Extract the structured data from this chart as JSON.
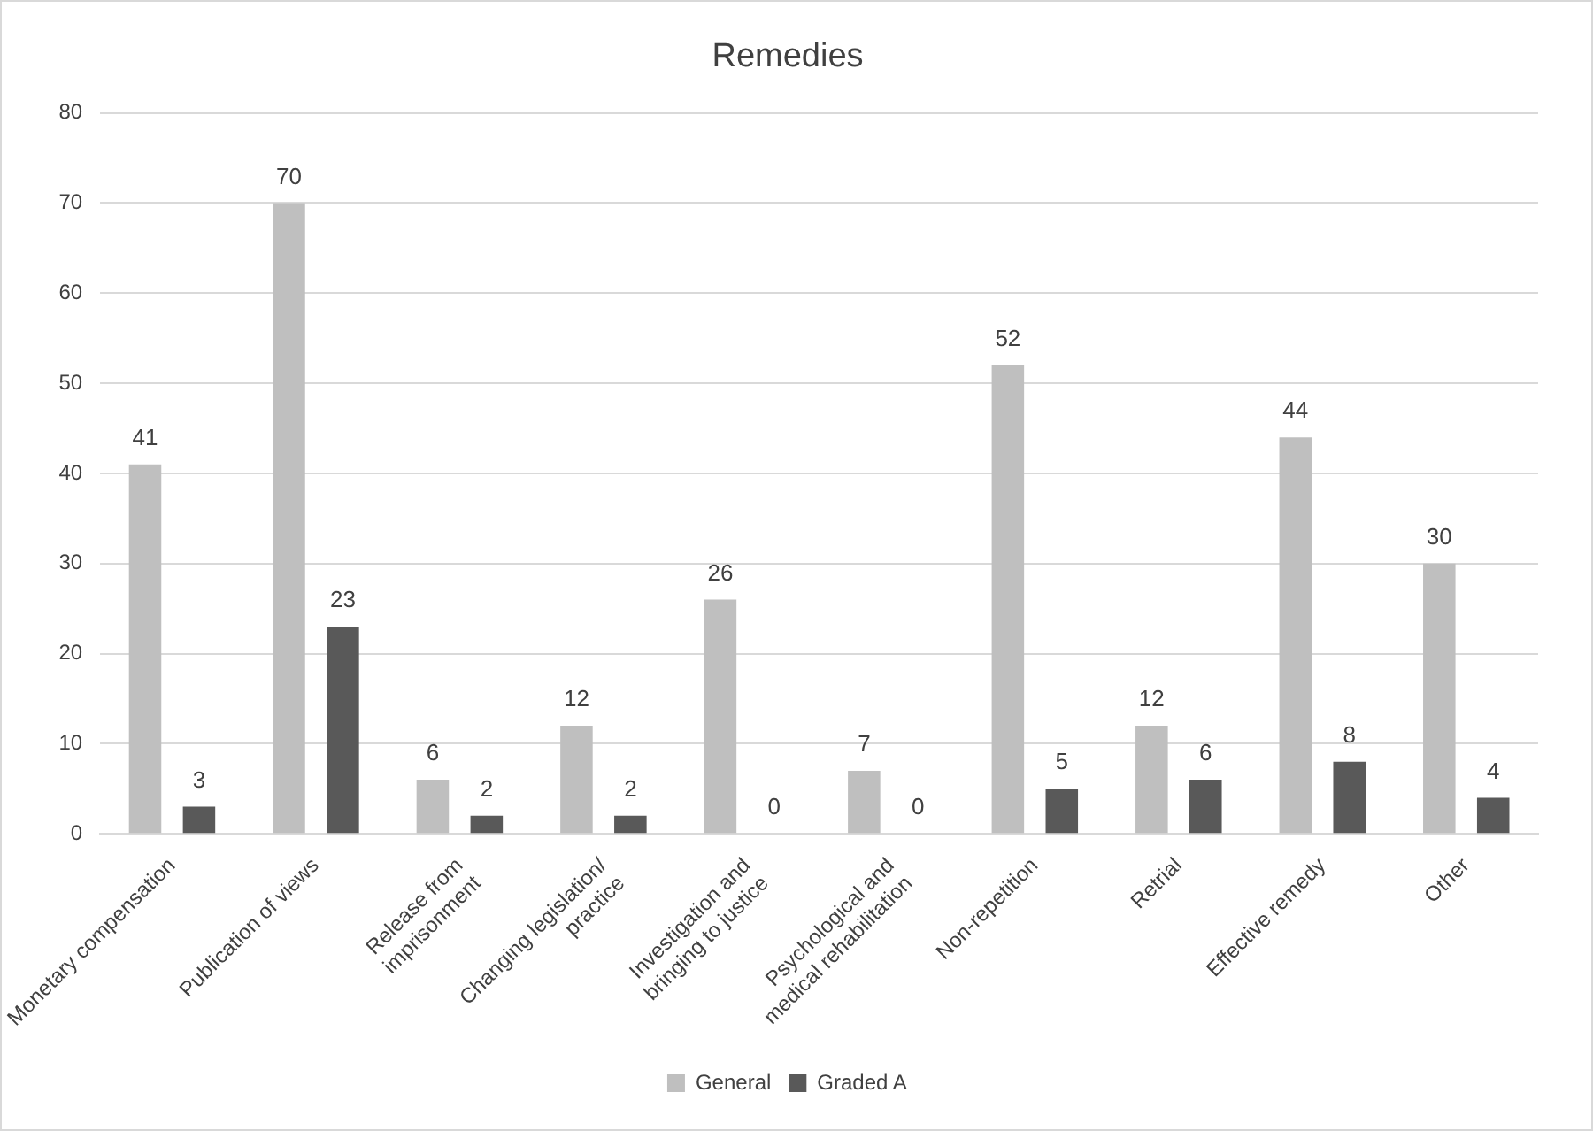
{
  "chart_data": {
    "type": "bar",
    "title": "Remedies",
    "categories": [
      "Monetary compensation",
      "Publication of views",
      "Release from imprisonment",
      "Changing legislation/ practice",
      "Investigation and bringing to justice",
      "Psychological and medical rehabilitation",
      "Non-repetition",
      "Retrial",
      "Effective remedy",
      "Other"
    ],
    "series": [
      {
        "name": "General",
        "color": "#bfbfbf",
        "values": [
          41,
          70,
          6,
          12,
          26,
          7,
          52,
          12,
          44,
          30
        ]
      },
      {
        "name": "Graded A",
        "color": "#595959",
        "values": [
          3,
          23,
          2,
          2,
          0,
          0,
          5,
          6,
          8,
          4
        ]
      }
    ],
    "ylim": [
      0,
      80
    ],
    "yticks": [
      0,
      10,
      20,
      30,
      40,
      50,
      60,
      70,
      80
    ],
    "grid": "y",
    "legend": "bottom",
    "data_labels": true
  }
}
